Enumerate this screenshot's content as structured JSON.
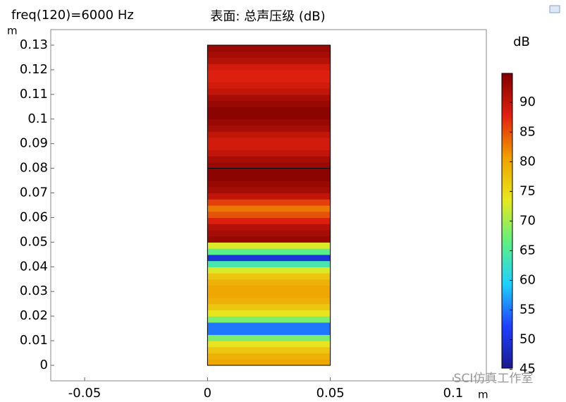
{
  "chart_data": {
    "type": "surface",
    "title": "表面: 总声压级 (dB)",
    "subtitle": "freq(120)=6000 Hz",
    "x_unit": "m",
    "y_unit": "m",
    "xlim": [
      -0.0638,
      0.1135
    ],
    "ylim": [
      -0.0063,
      0.1363
    ],
    "xticks": [
      -0.05,
      0,
      0.05,
      0.1
    ],
    "yticks": [
      0,
      0.01,
      0.02,
      0.03,
      0.04,
      0.05,
      0.06,
      0.07,
      0.08,
      0.09,
      0.1,
      0.11,
      0.12,
      0.13
    ],
    "domain": {
      "xlim": [
        0,
        0.05
      ],
      "ylim": [
        0,
        0.13
      ],
      "boundary_y": [
        0.08
      ]
    },
    "y": [
      0.00125,
      0.00375,
      0.00625,
      0.00875,
      0.01125,
      0.01375,
      0.01625,
      0.01875,
      0.02125,
      0.02375,
      0.02625,
      0.02875,
      0.03125,
      0.03375,
      0.03625,
      0.03875,
      0.04125,
      0.04375,
      0.04625,
      0.04875,
      0.05125,
      0.05375,
      0.05625,
      0.05875,
      0.06125,
      0.06375,
      0.06625,
      0.06875,
      0.07125,
      0.07375,
      0.07625,
      0.07875,
      0.08125,
      0.08375,
      0.08625,
      0.08875,
      0.09125,
      0.09375,
      0.09625,
      0.09875,
      0.10125,
      0.10375,
      0.10625,
      0.10875,
      0.11125,
      0.11375,
      0.11625,
      0.11875,
      0.12125,
      0.12375,
      0.12625,
      0.12875
    ],
    "values": [
      80,
      79,
      77,
      74,
      68,
      55,
      55,
      68,
      74,
      77,
      79,
      80,
      80,
      79,
      77,
      73,
      64,
      50,
      66,
      73,
      93,
      92,
      91,
      88,
      85,
      83,
      86,
      90,
      92,
      93,
      94,
      94,
      93,
      92,
      90,
      89,
      89,
      90,
      92,
      93,
      94,
      94,
      93,
      92,
      90,
      89,
      88,
      88,
      89,
      91,
      92,
      93
    ],
    "colorbar": {
      "label": "dB",
      "clim": [
        45.2,
        94.9
      ],
      "ticks": [
        45,
        50,
        55,
        60,
        65,
        70,
        75,
        80,
        85,
        90
      ],
      "colormap": [
        "#1a1a8c",
        "#1f3fff",
        "#20d0ff",
        "#60f080",
        "#e8e820",
        "#f0a000",
        "#e02010",
        "#7f0000"
      ]
    },
    "watermark": "SCI仿真工作室"
  }
}
